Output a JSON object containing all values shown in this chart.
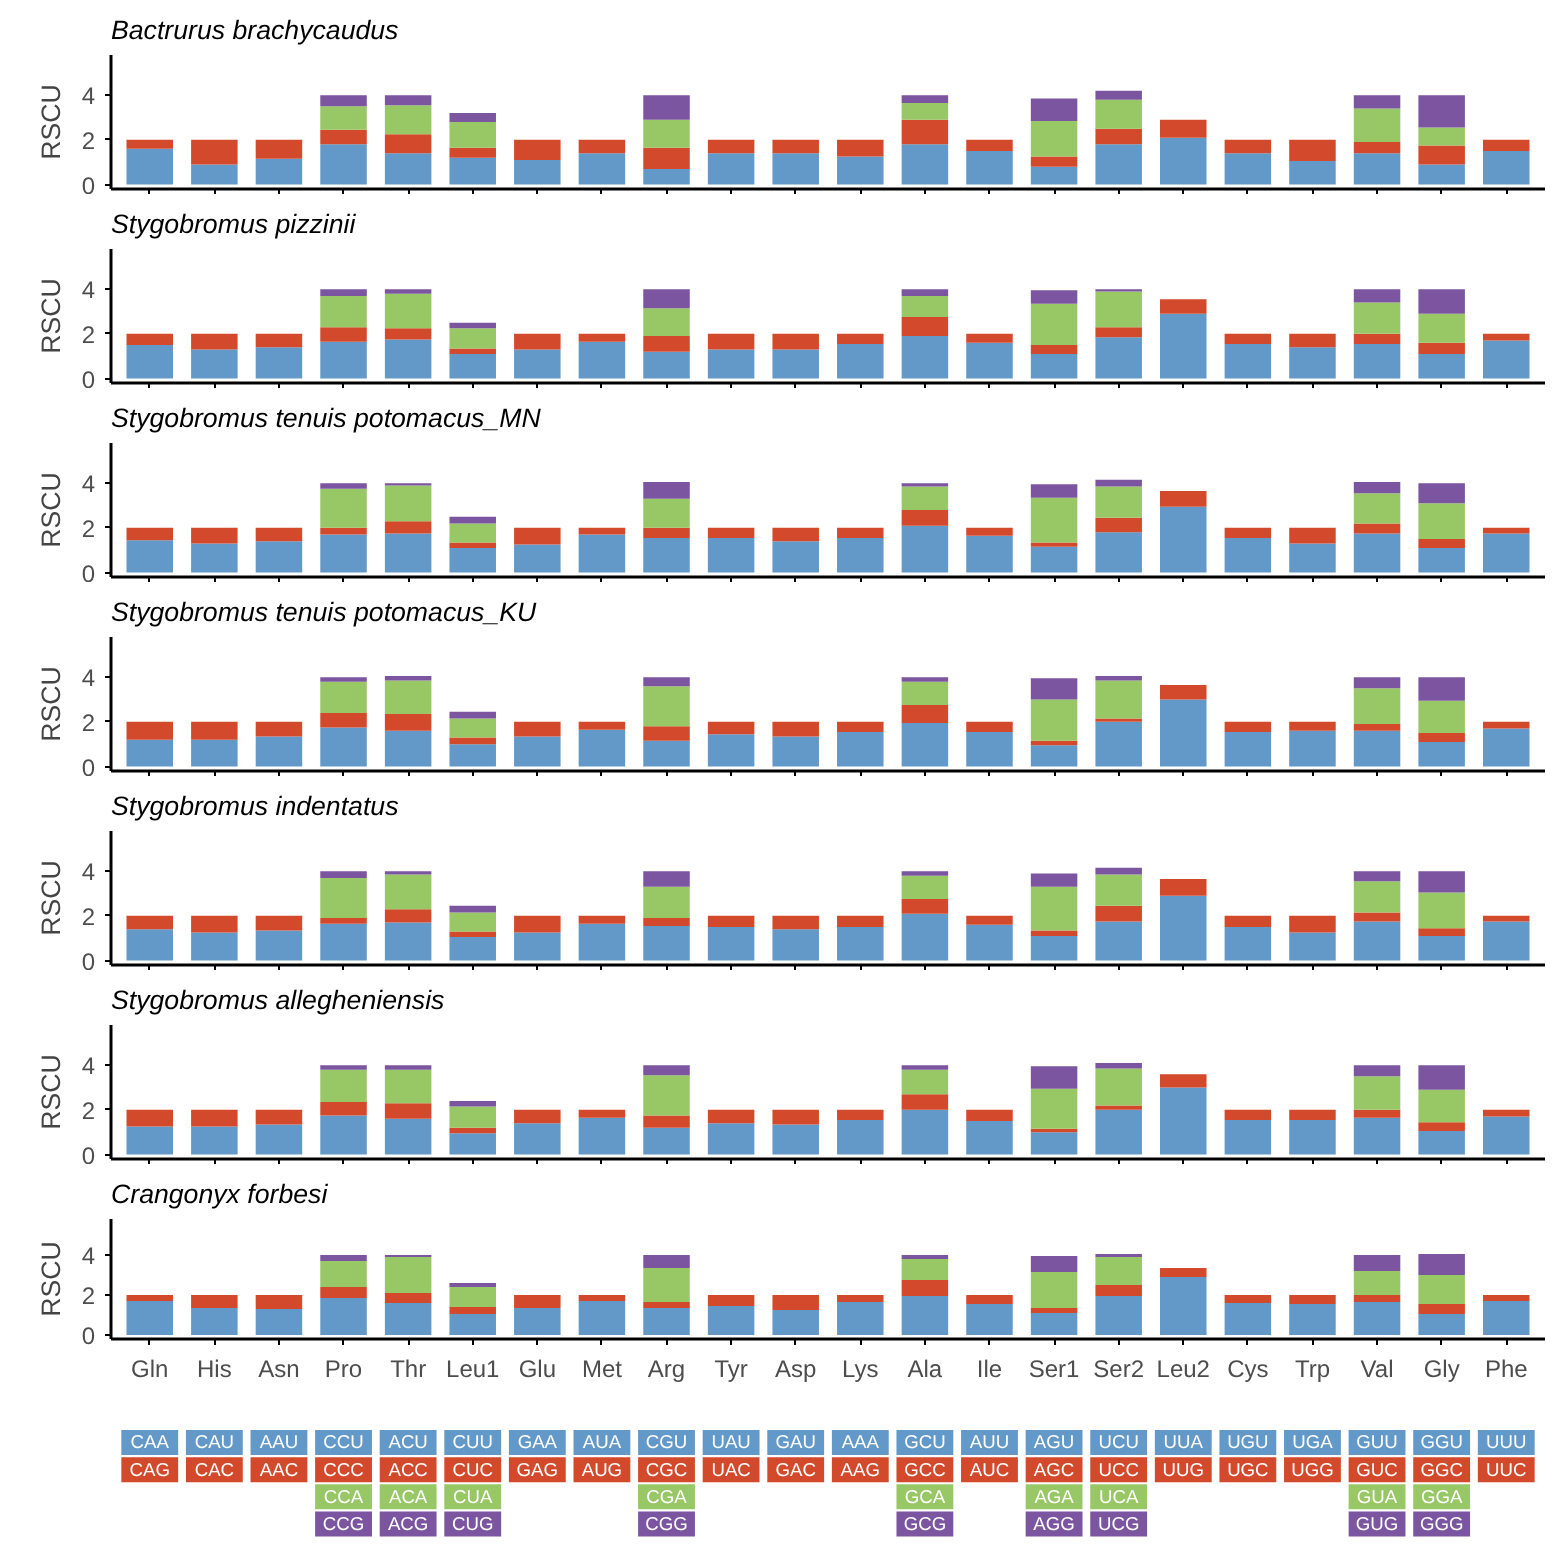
{
  "chart_data": [
    {
      "type": "bar",
      "stacked": true,
      "title": "Bactrurus brachycaudus",
      "ylabel": "RSCU",
      "categories": [
        null,
        null,
        null,
        null,
        null,
        null,
        null,
        null,
        null,
        null,
        null,
        null,
        null,
        null,
        null,
        null,
        null,
        null,
        null,
        null,
        null,
        null
      ],
      "ylim": [
        -0.2,
        5.8
      ],
      "yticks": [
        0,
        2,
        4
      ],
      "tick_labels": "y",
      "grid": false,
      "series": [
        {
          "color": "#6399c8",
          "values": [
            1.6,
            0.9,
            1.15,
            1.8,
            1.4,
            1.2,
            1.1,
            1.4,
            0.7,
            1.4,
            1.4,
            1.25,
            1.8,
            1.5,
            0.8,
            1.8,
            2.1,
            1.4,
            1.05,
            1.4,
            0.9,
            1.5
          ]
        },
        {
          "color": "#d3492b",
          "values": [
            0.4,
            1.1,
            0.85,
            0.65,
            0.85,
            0.45,
            0.9,
            0.6,
            0.95,
            0.6,
            0.6,
            0.75,
            1.1,
            0.5,
            0.45,
            0.7,
            0.8,
            0.6,
            0.95,
            0.5,
            0.85,
            0.5
          ]
        },
        {
          "color": "#98c765",
          "values": [
            null,
            null,
            null,
            1.05,
            1.3,
            1.15,
            null,
            null,
            1.25,
            null,
            null,
            null,
            0.75,
            null,
            1.6,
            1.3,
            null,
            null,
            null,
            1.5,
            0.8,
            null
          ]
        },
        {
          "color": "#7c55a0",
          "values": [
            null,
            null,
            null,
            0.5,
            0.45,
            0.4,
            null,
            null,
            1.1,
            null,
            null,
            null,
            0.35,
            null,
            1.0,
            0.4,
            null,
            null,
            null,
            0.6,
            1.45,
            null
          ]
        }
      ]
    },
    {
      "type": "bar",
      "stacked": true,
      "title": "Stygobromus pizzinii",
      "ylabel": "RSCU",
      "categories": [
        null,
        null,
        null,
        null,
        null,
        null,
        null,
        null,
        null,
        null,
        null,
        null,
        null,
        null,
        null,
        null,
        null,
        null,
        null,
        null,
        null,
        null
      ],
      "ylim": [
        -0.2,
        5.8
      ],
      "yticks": [
        0,
        2,
        4
      ],
      "tick_labels": "y",
      "grid": false,
      "series": [
        {
          "color": "#6399c8",
          "values": [
            1.5,
            1.3,
            1.4,
            1.65,
            1.75,
            1.1,
            1.3,
            1.65,
            1.2,
            1.3,
            1.3,
            1.55,
            1.9,
            1.6,
            1.1,
            1.85,
            2.9,
            1.55,
            1.4,
            1.55,
            1.1,
            1.7
          ]
        },
        {
          "color": "#d3492b",
          "values": [
            0.5,
            0.7,
            0.6,
            0.65,
            0.5,
            0.25,
            0.7,
            0.35,
            0.7,
            0.7,
            0.7,
            0.45,
            0.85,
            0.4,
            0.4,
            0.45,
            0.65,
            0.45,
            0.6,
            0.45,
            0.5,
            0.3
          ]
        },
        {
          "color": "#98c765",
          "values": [
            null,
            null,
            null,
            1.4,
            1.55,
            0.9,
            null,
            null,
            1.25,
            null,
            null,
            null,
            0.95,
            null,
            1.85,
            1.6,
            null,
            null,
            null,
            1.4,
            1.3,
            null
          ]
        },
        {
          "color": "#7c55a0",
          "values": [
            null,
            null,
            null,
            0.3,
            0.2,
            0.25,
            null,
            null,
            0.85,
            null,
            null,
            null,
            0.3,
            null,
            0.6,
            0.1,
            null,
            null,
            null,
            0.6,
            1.1,
            null
          ]
        }
      ]
    },
    {
      "type": "bar",
      "stacked": true,
      "title": "Stygobromus tenuis potomacus_MN",
      "ylabel": "RSCU",
      "categories": [
        null,
        null,
        null,
        null,
        null,
        null,
        null,
        null,
        null,
        null,
        null,
        null,
        null,
        null,
        null,
        null,
        null,
        null,
        null,
        null,
        null,
        null
      ],
      "ylim": [
        -0.2,
        5.8
      ],
      "yticks": [
        0,
        2,
        4
      ],
      "tick_labels": "y",
      "grid": false,
      "series": [
        {
          "color": "#6399c8",
          "values": [
            1.45,
            1.3,
            1.4,
            1.7,
            1.75,
            1.1,
            1.25,
            1.7,
            1.55,
            1.55,
            1.4,
            1.55,
            2.1,
            1.65,
            1.15,
            1.8,
            2.95,
            1.55,
            1.3,
            1.75,
            1.1,
            1.75
          ]
        },
        {
          "color": "#d3492b",
          "values": [
            0.55,
            0.7,
            0.6,
            0.3,
            0.55,
            0.25,
            0.75,
            0.3,
            0.45,
            0.45,
            0.6,
            0.45,
            0.7,
            0.35,
            0.2,
            0.65,
            0.7,
            0.45,
            0.7,
            0.45,
            0.4,
            0.25
          ]
        },
        {
          "color": "#98c765",
          "values": [
            null,
            null,
            null,
            1.75,
            1.6,
            0.85,
            null,
            null,
            1.3,
            null,
            null,
            null,
            1.05,
            null,
            2.0,
            1.4,
            null,
            null,
            null,
            1.35,
            1.6,
            null
          ]
        },
        {
          "color": "#7c55a0",
          "values": [
            null,
            null,
            null,
            0.25,
            0.1,
            0.3,
            null,
            null,
            0.75,
            null,
            null,
            null,
            0.15,
            null,
            0.6,
            0.3,
            null,
            null,
            null,
            0.5,
            0.9,
            null
          ]
        }
      ]
    },
    {
      "type": "bar",
      "stacked": true,
      "title": "Stygobromus tenuis potomacus_KU",
      "ylabel": "RSCU",
      "categories": [
        null,
        null,
        null,
        null,
        null,
        null,
        null,
        null,
        null,
        null,
        null,
        null,
        null,
        null,
        null,
        null,
        null,
        null,
        null,
        null,
        null,
        null
      ],
      "ylim": [
        -0.2,
        5.8
      ],
      "yticks": [
        0,
        2,
        4
      ],
      "tick_labels": "y",
      "grid": false,
      "series": [
        {
          "color": "#6399c8",
          "values": [
            1.2,
            1.2,
            1.35,
            1.75,
            1.6,
            1.0,
            1.35,
            1.65,
            1.15,
            1.45,
            1.35,
            1.55,
            1.95,
            1.55,
            0.95,
            2.0,
            3.0,
            1.55,
            1.6,
            1.6,
            1.1,
            1.7
          ]
        },
        {
          "color": "#d3492b",
          "values": [
            0.8,
            0.8,
            0.65,
            0.65,
            0.75,
            0.3,
            0.65,
            0.35,
            0.65,
            0.55,
            0.65,
            0.45,
            0.8,
            0.45,
            0.2,
            0.15,
            0.65,
            0.45,
            0.4,
            0.3,
            0.4,
            0.3
          ]
        },
        {
          "color": "#98c765",
          "values": [
            null,
            null,
            null,
            1.4,
            1.5,
            0.85,
            null,
            null,
            1.8,
            null,
            null,
            null,
            1.05,
            null,
            1.85,
            1.7,
            null,
            null,
            null,
            1.6,
            1.45,
            null
          ]
        },
        {
          "color": "#7c55a0",
          "values": [
            null,
            null,
            null,
            0.2,
            0.2,
            0.3,
            null,
            null,
            0.4,
            null,
            null,
            null,
            0.2,
            null,
            0.95,
            0.2,
            null,
            null,
            null,
            0.5,
            1.05,
            null
          ]
        }
      ]
    },
    {
      "type": "bar",
      "stacked": true,
      "title": "Stygobromus indentatus",
      "ylabel": "RSCU",
      "categories": [
        null,
        null,
        null,
        null,
        null,
        null,
        null,
        null,
        null,
        null,
        null,
        null,
        null,
        null,
        null,
        null,
        null,
        null,
        null,
        null,
        null,
        null
      ],
      "ylim": [
        -0.2,
        5.8
      ],
      "yticks": [
        0,
        2,
        4
      ],
      "tick_labels": "y",
      "grid": false,
      "series": [
        {
          "color": "#6399c8",
          "values": [
            1.4,
            1.25,
            1.35,
            1.65,
            1.7,
            1.05,
            1.25,
            1.65,
            1.55,
            1.5,
            1.4,
            1.5,
            2.1,
            1.6,
            1.1,
            1.75,
            2.9,
            1.5,
            1.25,
            1.75,
            1.1,
            1.75
          ]
        },
        {
          "color": "#d3492b",
          "values": [
            0.6,
            0.75,
            0.65,
            0.25,
            0.6,
            0.25,
            0.75,
            0.35,
            0.35,
            0.5,
            0.6,
            0.5,
            0.65,
            0.4,
            0.25,
            0.7,
            0.75,
            0.5,
            0.75,
            0.4,
            0.35,
            0.25
          ]
        },
        {
          "color": "#98c765",
          "values": [
            null,
            null,
            null,
            1.8,
            1.55,
            0.85,
            null,
            null,
            1.4,
            null,
            null,
            null,
            1.05,
            null,
            1.95,
            1.4,
            null,
            null,
            null,
            1.4,
            1.6,
            null
          ]
        },
        {
          "color": "#7c55a0",
          "values": [
            null,
            null,
            null,
            0.3,
            0.15,
            0.3,
            null,
            null,
            0.7,
            null,
            null,
            null,
            0.2,
            null,
            0.6,
            0.3,
            null,
            null,
            null,
            0.45,
            0.95,
            null
          ]
        }
      ]
    },
    {
      "type": "bar",
      "stacked": true,
      "title": "Stygobromus allegheniensis",
      "ylabel": "RSCU",
      "categories": [
        null,
        null,
        null,
        null,
        null,
        null,
        null,
        null,
        null,
        null,
        null,
        null,
        null,
        null,
        null,
        null,
        null,
        null,
        null,
        null,
        null,
        null
      ],
      "ylim": [
        -0.2,
        5.8
      ],
      "yticks": [
        0,
        2,
        4
      ],
      "tick_labels": "y",
      "grid": false,
      "series": [
        {
          "color": "#6399c8",
          "values": [
            1.25,
            1.25,
            1.35,
            1.75,
            1.6,
            0.95,
            1.4,
            1.65,
            1.2,
            1.4,
            1.35,
            1.55,
            2.0,
            1.5,
            1.0,
            2.0,
            3.0,
            1.55,
            1.55,
            1.65,
            1.05,
            1.7
          ]
        },
        {
          "color": "#d3492b",
          "values": [
            0.75,
            0.75,
            0.65,
            0.6,
            0.7,
            0.25,
            0.6,
            0.35,
            0.55,
            0.6,
            0.65,
            0.45,
            0.7,
            0.5,
            0.15,
            0.2,
            0.6,
            0.45,
            0.45,
            0.35,
            0.4,
            0.3
          ]
        },
        {
          "color": "#98c765",
          "values": [
            null,
            null,
            null,
            1.45,
            1.5,
            0.95,
            null,
            null,
            1.8,
            null,
            null,
            null,
            1.1,
            null,
            1.8,
            1.65,
            null,
            null,
            null,
            1.5,
            1.45,
            null
          ]
        },
        {
          "color": "#7c55a0",
          "values": [
            null,
            null,
            null,
            0.2,
            0.2,
            0.25,
            null,
            null,
            0.45,
            null,
            null,
            null,
            0.2,
            null,
            1.0,
            0.25,
            null,
            null,
            null,
            0.5,
            1.1,
            null
          ]
        }
      ]
    },
    {
      "type": "bar",
      "stacked": true,
      "title": "Crangonyx forbesi",
      "ylabel": "RSCU",
      "categories": [
        "Gln",
        "His",
        "Asn",
        "Pro",
        "Thr",
        "Leu1",
        "Glu",
        "Met",
        "Arg",
        "Tyr",
        "Asp",
        "Lys",
        "Ala",
        "Ile",
        "Ser1",
        "Ser2",
        "Leu2",
        "Cys",
        "Trp",
        "Val",
        "Gly",
        "Phe"
      ],
      "ylim": [
        -0.2,
        5.8
      ],
      "yticks": [
        0,
        2,
        4
      ],
      "grid": false,
      "series": [
        {
          "color": "#6399c8",
          "values": [
            1.7,
            1.35,
            1.3,
            1.85,
            1.6,
            1.05,
            1.35,
            1.7,
            1.35,
            1.45,
            1.25,
            1.65,
            1.95,
            1.55,
            1.1,
            1.95,
            2.9,
            1.6,
            1.55,
            1.65,
            1.05,
            1.7
          ],
          "value_labels": [
            "CAA",
            "CAU",
            "AAU",
            "CCU",
            "ACU",
            "CUU",
            "GAA",
            "AUA",
            "CGU",
            "UAU",
            "GAU",
            "AAA",
            "GCU",
            "AUU",
            "AGU",
            "UCU",
            "UUA",
            "UGU",
            "UGA",
            "GUU",
            "GGU",
            "UUU"
          ]
        },
        {
          "color": "#d3492b",
          "values": [
            0.3,
            0.65,
            0.7,
            0.55,
            0.5,
            0.35,
            0.65,
            0.3,
            0.3,
            0.55,
            0.75,
            0.35,
            0.8,
            0.45,
            0.25,
            0.55,
            0.45,
            0.4,
            0.45,
            0.35,
            0.5,
            0.3
          ],
          "value_labels": [
            "CAG",
            "CAC",
            "AAC",
            "CCC",
            "ACC",
            "CUC",
            "GAG",
            "AUG",
            "CGC",
            "UAC",
            "GAC",
            "AAG",
            "GCC",
            "AUC",
            "AGC",
            "UCC",
            "UUG",
            "UGC",
            "UGG",
            "GUC",
            "GGC",
            "UUC"
          ]
        },
        {
          "color": "#98c765",
          "values": [
            null,
            null,
            null,
            1.3,
            1.8,
            1.0,
            null,
            null,
            1.7,
            null,
            null,
            null,
            1.05,
            null,
            1.8,
            1.4,
            null,
            null,
            null,
            1.2,
            1.45,
            null
          ],
          "value_labels": [
            null,
            null,
            null,
            "CCA",
            "ACA",
            "CUA",
            null,
            null,
            "CGA",
            null,
            null,
            null,
            "GCA",
            null,
            "AGA",
            "UCA",
            null,
            null,
            null,
            "GUA",
            "GGA",
            null
          ]
        },
        {
          "color": "#7c55a0",
          "values": [
            null,
            null,
            null,
            0.3,
            0.1,
            0.2,
            null,
            null,
            0.65,
            null,
            null,
            null,
            0.2,
            null,
            0.8,
            0.15,
            null,
            null,
            null,
            0.8,
            1.05,
            null
          ],
          "value_labels": [
            null,
            null,
            null,
            "CCG",
            "ACG",
            "CUG",
            null,
            null,
            "CGG",
            null,
            null,
            null,
            "GCG",
            null,
            "AGG",
            "UCG",
            null,
            null,
            null,
            "GUG",
            "GGG",
            null
          ]
        }
      ]
    }
  ]
}
